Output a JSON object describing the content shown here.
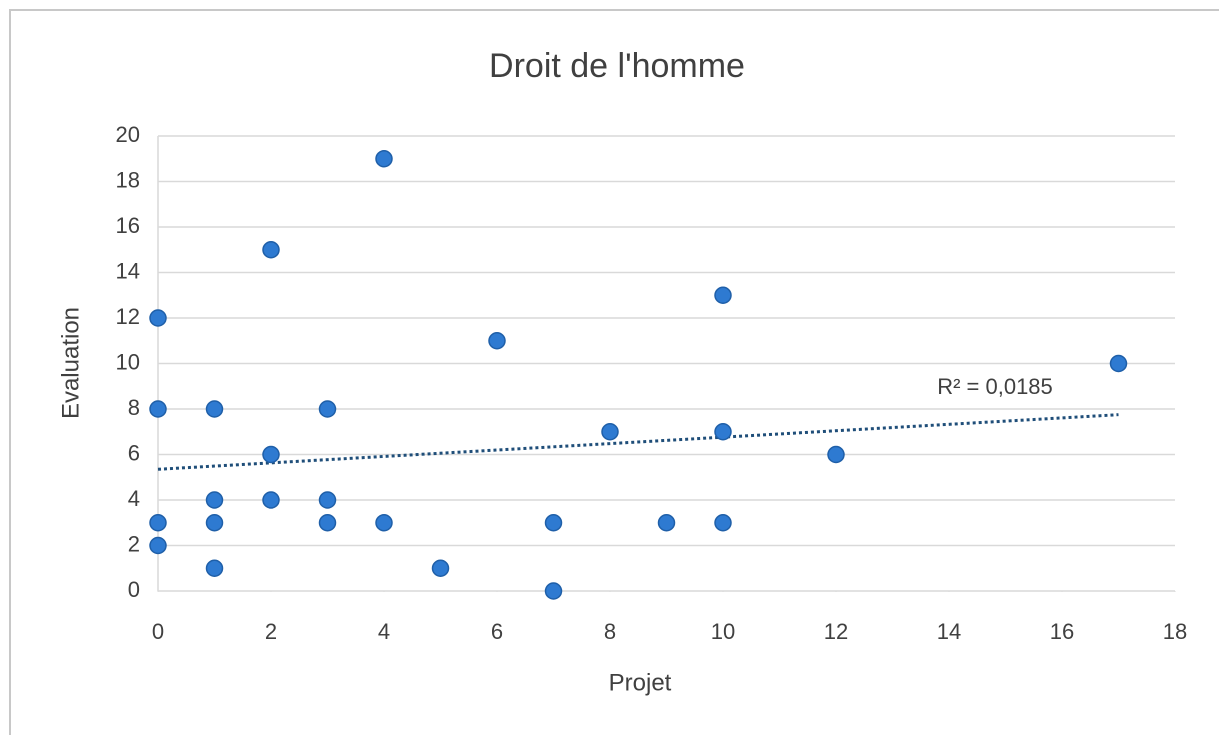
{
  "chart_data": {
    "type": "scatter",
    "title": "Droit de l'homme",
    "x_label": "Projet",
    "y_label": "Evaluation",
    "x": [
      0,
      0,
      0,
      0,
      1,
      1,
      1,
      1,
      2,
      2,
      2,
      3,
      3,
      3,
      4,
      4,
      5,
      6,
      7,
      7,
      8,
      9,
      10,
      10,
      10,
      12,
      17
    ],
    "values": [
      12,
      8,
      3,
      2,
      8,
      4,
      3,
      1,
      15,
      6,
      4,
      8,
      4,
      3,
      19,
      3,
      1,
      11,
      3,
      0,
      7,
      3,
      13,
      7,
      3,
      6,
      10
    ],
    "color": "#2e7ad1",
    "trendline": {
      "x": [
        0,
        17
      ],
      "values": [
        5.35,
        7.75
      ],
      "color": "#1f4e79",
      "label": "R² = 0,0185"
    },
    "xlim": [
      0,
      18
    ],
    "xticks": [
      0,
      2,
      4,
      6,
      8,
      10,
      12,
      14,
      16,
      18
    ],
    "ylim": [
      0,
      20
    ],
    "yticks": [
      0,
      2,
      4,
      6,
      8,
      10,
      12,
      14,
      16,
      18,
      20
    ],
    "grid": true
  }
}
